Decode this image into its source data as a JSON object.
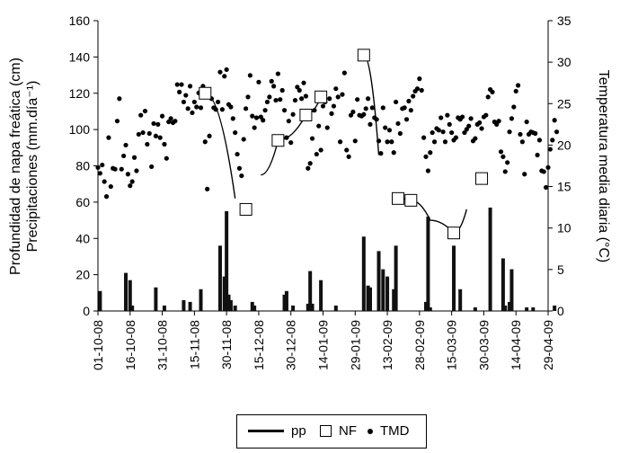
{
  "chart_data": {
    "type": "bar",
    "ylabel_left": [
      "Profundidad de napa freática (cm)",
      "Precipitaciones (mm.día⁻¹)"
    ],
    "ylabel_right": "Temperatura media diaria (°C)",
    "ylim_left": [
      0,
      160
    ],
    "ylim_right": [
      0,
      35
    ],
    "yticks_left": [
      "0",
      "20",
      "40",
      "60",
      "80",
      "100",
      "120",
      "140",
      "160"
    ],
    "yticks_right": [
      "0",
      "5",
      "10",
      "15",
      "20",
      "25",
      "30",
      "35"
    ],
    "xticks": [
      "01-10-08",
      "16-10-08",
      "31-10-08",
      "15-11-08",
      "30-11-08",
      "15-12-08",
      "30-12-08",
      "14-01-09",
      "29-01-09",
      "13-02-09",
      "28-02-09",
      "15-03-09",
      "30-03-09",
      "14-04-09",
      "29-04-09"
    ],
    "legend": {
      "pp": "pp",
      "nf": "NF",
      "tmd": "TMD"
    },
    "pp": [
      [
        1,
        11
      ],
      [
        13,
        21
      ],
      [
        15,
        17
      ],
      [
        16,
        3
      ],
      [
        27,
        13
      ],
      [
        31,
        3
      ],
      [
        40,
        6
      ],
      [
        43,
        5
      ],
      [
        48,
        12
      ],
      [
        57,
        36
      ],
      [
        59,
        19
      ],
      [
        60,
        55
      ],
      [
        61,
        9
      ],
      [
        62,
        6
      ],
      [
        64,
        3
      ],
      [
        72,
        5
      ],
      [
        73,
        3
      ],
      [
        87,
        9
      ],
      [
        88,
        11
      ],
      [
        91,
        3
      ],
      [
        98,
        4
      ],
      [
        99,
        22
      ],
      [
        100,
        4
      ],
      [
        104,
        17
      ],
      [
        111,
        3
      ],
      [
        124,
        41
      ],
      [
        126,
        14
      ],
      [
        127,
        13
      ],
      [
        131,
        33
      ],
      [
        133,
        23
      ],
      [
        135,
        19
      ],
      [
        138,
        12
      ],
      [
        139,
        36
      ],
      [
        153,
        5
      ],
      [
        154,
        52
      ],
      [
        155,
        2
      ],
      [
        166,
        36
      ],
      [
        169,
        12
      ],
      [
        176,
        2
      ],
      [
        183,
        57
      ],
      [
        189,
        29
      ],
      [
        190,
        3
      ],
      [
        192,
        5
      ],
      [
        193,
        23
      ],
      [
        200,
        2
      ],
      [
        203,
        2
      ],
      [
        213,
        3
      ]
    ],
    "nf": [
      [
        50,
        120
      ],
      [
        69,
        56
      ],
      [
        84,
        94
      ],
      [
        97,
        108
      ],
      [
        104,
        118
      ],
      [
        124,
        141
      ],
      [
        140,
        62
      ],
      [
        146,
        61
      ],
      [
        166,
        43
      ],
      [
        179,
        73
      ]
    ],
    "nf_segments": [
      [
        [
          50,
          120
        ],
        [
          64,
          62
        ]
      ],
      [
        [
          76,
          75
        ],
        [
          84,
          94
        ],
        [
          97,
          108
        ],
        [
          104,
          118
        ]
      ],
      [
        [
          124,
          141
        ],
        [
          131,
          86
        ]
      ],
      [
        [
          140,
          62
        ],
        [
          146,
          61
        ],
        [
          155,
          50
        ],
        [
          166,
          43
        ],
        [
          172,
          56
        ]
      ]
    ],
    "tmd": [
      [
        0,
        17.3
      ],
      [
        1,
        16.6
      ],
      [
        2,
        17.6
      ],
      [
        3,
        15.6
      ],
      [
        4,
        13.8
      ],
      [
        5,
        20.9
      ],
      [
        6,
        15.0
      ],
      [
        7,
        17.2
      ],
      [
        8,
        17.1
      ],
      [
        9,
        22.9
      ],
      [
        10,
        25.6
      ],
      [
        11,
        17.1
      ],
      [
        12,
        18.7
      ],
      [
        13,
        20.0
      ],
      [
        14,
        16.5
      ],
      [
        15,
        15.1
      ],
      [
        16,
        15.6
      ],
      [
        17,
        18.5
      ],
      [
        18,
        16.9
      ],
      [
        19,
        21.3
      ],
      [
        20,
        23.6
      ],
      [
        21,
        21.5
      ],
      [
        22,
        24.1
      ],
      [
        23,
        20.1
      ],
      [
        24,
        21.4
      ],
      [
        25,
        17.4
      ],
      [
        26,
        22.6
      ],
      [
        27,
        21.1
      ],
      [
        28,
        22.5
      ],
      [
        29,
        20.9
      ],
      [
        30,
        23.5
      ],
      [
        31,
        20.1
      ],
      [
        32,
        18.4
      ],
      [
        33,
        22.8
      ],
      [
        34,
        23.2
      ],
      [
        35,
        22.7
      ],
      [
        36,
        22.9
      ],
      [
        37,
        27.3
      ],
      [
        38,
        26.4
      ],
      [
        39,
        27.3
      ],
      [
        40,
        25.2
      ],
      [
        41,
        26.0
      ],
      [
        42,
        24.4
      ],
      [
        43,
        27.1
      ],
      [
        44,
        23.9
      ],
      [
        45,
        25.2
      ],
      [
        46,
        24.6
      ],
      [
        47,
        26.3
      ],
      [
        48,
        24.5
      ],
      [
        49,
        27.1
      ],
      [
        50,
        20.4
      ],
      [
        51,
        14.7
      ],
      [
        52,
        21.1
      ],
      [
        53,
        25.6
      ],
      [
        54,
        24.5
      ],
      [
        55,
        24.3
      ],
      [
        56,
        25.2
      ],
      [
        57,
        28.8
      ],
      [
        58,
        24.3
      ],
      [
        59,
        28.3
      ],
      [
        60,
        29.1
      ],
      [
        61,
        24.9
      ],
      [
        62,
        24.6
      ],
      [
        63,
        23.2
      ],
      [
        64,
        21.5
      ],
      [
        65,
        18.9
      ],
      [
        66,
        17.2
      ],
      [
        67,
        16.3
      ],
      [
        68,
        20.7
      ],
      [
        69,
        24.4
      ],
      [
        70,
        25.8
      ],
      [
        71,
        28.4
      ],
      [
        72,
        23.5
      ],
      [
        73,
        22.1
      ],
      [
        74,
        23.3
      ],
      [
        75,
        27.6
      ],
      [
        76,
        23.4
      ],
      [
        77,
        23.0
      ],
      [
        78,
        24.2
      ],
      [
        79,
        25.2
      ],
      [
        80,
        25.8
      ],
      [
        81,
        27.7
      ],
      [
        82,
        27.1
      ],
      [
        83,
        25.4
      ],
      [
        84,
        28.6
      ],
      [
        85,
        25.5
      ],
      [
        86,
        26.6
      ],
      [
        87,
        24.2
      ],
      [
        88,
        20.9
      ],
      [
        89,
        22.9
      ],
      [
        90,
        20.3
      ],
      [
        91,
        23.7
      ],
      [
        92,
        25.4
      ],
      [
        93,
        27.0
      ],
      [
        94,
        26.6
      ],
      [
        95,
        25.6
      ],
      [
        96,
        27.5
      ],
      [
        97,
        25.9
      ],
      [
        98,
        17.2
      ],
      [
        99,
        17.8
      ],
      [
        100,
        20.8
      ],
      [
        101,
        24.2
      ],
      [
        102,
        18.9
      ],
      [
        103,
        22.3
      ],
      [
        104,
        19.4
      ],
      [
        105,
        24.7
      ],
      [
        106,
        25.2
      ],
      [
        107,
        22.1
      ],
      [
        108,
        25.6
      ],
      [
        109,
        23.8
      ],
      [
        110,
        24.7
      ],
      [
        111,
        26.8
      ],
      [
        112,
        25.8
      ],
      [
        113,
        20.4
      ],
      [
        114,
        26.1
      ],
      [
        115,
        28.7
      ],
      [
        116,
        19.4
      ],
      [
        117,
        18.6
      ],
      [
        118,
        23.6
      ],
      [
        119,
        24.0
      ],
      [
        120,
        20.5
      ],
      [
        121,
        25.5
      ],
      [
        122,
        23.6
      ],
      [
        123,
        23.5
      ],
      [
        124,
        23.7
      ],
      [
        125,
        24.4
      ],
      [
        126,
        25.6
      ],
      [
        127,
        22.5
      ],
      [
        128,
        24.5
      ],
      [
        129,
        23.3
      ],
      [
        130,
        23.1
      ],
      [
        131,
        20.5
      ],
      [
        132,
        19.0
      ],
      [
        133,
        24.5
      ],
      [
        134,
        22.1
      ],
      [
        135,
        20.4
      ],
      [
        136,
        21.8
      ],
      [
        137,
        20.4
      ],
      [
        138,
        19.1
      ],
      [
        139,
        25.2
      ],
      [
        140,
        22.6
      ],
      [
        141,
        21.4
      ],
      [
        142,
        24.4
      ],
      [
        143,
        24.5
      ],
      [
        144,
        23.1
      ],
      [
        145,
        25.3
      ],
      [
        146,
        24.2
      ],
      [
        147,
        25.9
      ],
      [
        148,
        26.5
      ],
      [
        149,
        26.8
      ],
      [
        150,
        28.0
      ],
      [
        151,
        26.6
      ],
      [
        152,
        20.9
      ],
      [
        153,
        18.6
      ],
      [
        154,
        16.9
      ],
      [
        155,
        19.1
      ],
      [
        156,
        21.5
      ],
      [
        157,
        20.4
      ],
      [
        158,
        22.0
      ],
      [
        159,
        21.8
      ],
      [
        160,
        23.3
      ],
      [
        161,
        21.6
      ],
      [
        162,
        20.4
      ],
      [
        163,
        23.6
      ],
      [
        164,
        22.5
      ],
      [
        165,
        21.5
      ],
      [
        166,
        20.6
      ],
      [
        167,
        20.9
      ],
      [
        168,
        23.3
      ],
      [
        169,
        23.1
      ],
      [
        170,
        23.4
      ],
      [
        171,
        21.5
      ],
      [
        172,
        21.9
      ],
      [
        173,
        22.3
      ],
      [
        174,
        23.2
      ],
      [
        175,
        20.5
      ],
      [
        176,
        20.8
      ],
      [
        177,
        22.5
      ],
      [
        178,
        22.7
      ],
      [
        179,
        22.0
      ],
      [
        180,
        23.4
      ],
      [
        181,
        23.6
      ],
      [
        182,
        25.8
      ],
      [
        183,
        26.7
      ],
      [
        184,
        26.4
      ],
      [
        185,
        22.8
      ],
      [
        186,
        22.5
      ],
      [
        187,
        22.9
      ],
      [
        188,
        19.2
      ],
      [
        189,
        18.6
      ],
      [
        190,
        16.8
      ],
      [
        191,
        17.9
      ],
      [
        192,
        21.6
      ],
      [
        193,
        23.2
      ],
      [
        194,
        24.6
      ],
      [
        195,
        26.5
      ],
      [
        196,
        27.2
      ],
      [
        197,
        21.3
      ],
      [
        198,
        20.4
      ],
      [
        199,
        16.5
      ],
      [
        200,
        22.8
      ],
      [
        201,
        21.3
      ],
      [
        202,
        21.6
      ],
      [
        203,
        21.5
      ],
      [
        204,
        21.4
      ],
      [
        205,
        18.8
      ],
      [
        206,
        20.6
      ],
      [
        207,
        16.9
      ],
      [
        208,
        16.8
      ],
      [
        209,
        14.9
      ],
      [
        210,
        17.3
      ],
      [
        211,
        19.5
      ],
      [
        212,
        20.6
      ],
      [
        213,
        23.0
      ],
      [
        214,
        21.6
      ]
    ]
  }
}
